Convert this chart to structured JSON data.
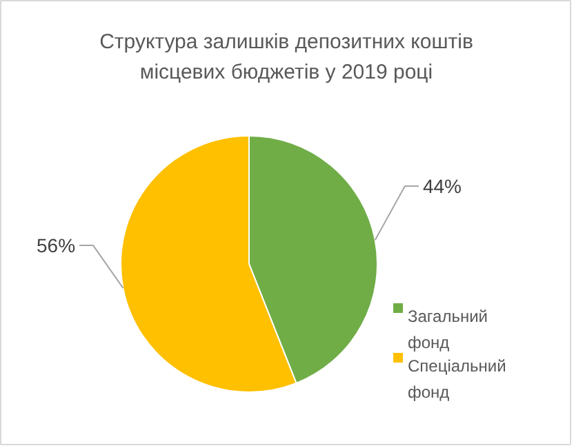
{
  "chart_data": {
    "type": "pie",
    "title": "Структура залишків депозитних коштів\nмісцевих бюджетів у 2019 році",
    "categories": [
      "Загальний фонд",
      "Спеціальний фонд"
    ],
    "values": [
      44,
      56
    ],
    "colors": [
      "#70ad47",
      "#ffc000"
    ],
    "value_labels": [
      "44%",
      "56%"
    ],
    "legend": "right"
  }
}
